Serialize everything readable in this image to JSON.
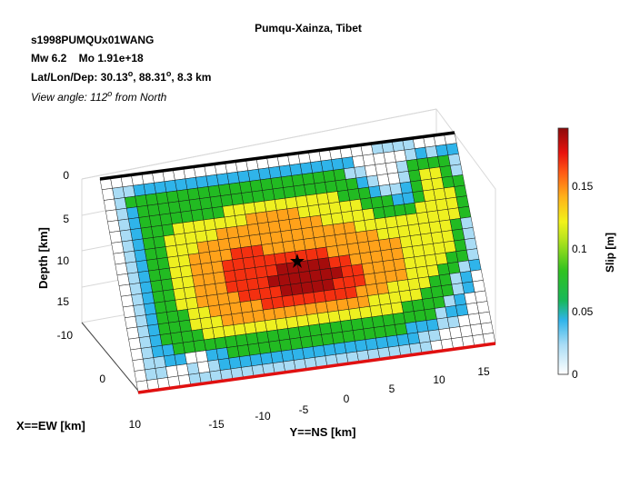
{
  "header": {
    "event_id": "s1998PUMQUx01WANG",
    "magnitude_line": "Mw 6.2    Mo 1.91e+18",
    "location_prefix": "Lat/Lon/Dep: 30.13",
    "location_mid": ", 88.31",
    "location_suffix": ", 8.3 km",
    "deg": "o",
    "view_prefix": "View angle: 112",
    "view_suffix": " from North"
  },
  "chart_data": {
    "type": "heatmap",
    "title": "Pumqu-Xainza, Tibet",
    "xlabel": "Y==NS [km]",
    "ylabel": "X==EW [km]",
    "zlabel": "Depth [km]",
    "colorbar_label": "Slip [m]",
    "colorscale": "jet-like (white to dark red)",
    "y_ticks": [
      "-15",
      "-10",
      "-5",
      "0",
      "5",
      "10",
      "15"
    ],
    "x_ticks": [
      "-10",
      "0",
      "10"
    ],
    "depth_ticks": [
      "0",
      "5",
      "10",
      "15"
    ],
    "colorbar_ticks": [
      "0",
      "0.05",
      "0.1",
      "0.15"
    ],
    "slip_range_m": [
      0,
      0.195
    ],
    "grid_cols": 34,
    "grid_rows": 20,
    "hypocenter_depth_km": 8.3,
    "peak_slip_m": 0.19,
    "slip_rows": [
      "..........................cccc..",
      ".ccbbbbbbbbbbbbbbbbbbbbb.....cbcbb.",
      ".cgggggggggggggggggggggcc...cggggc.",
      ".cbgggggggggggggggggggggbc..cgyygc.",
      ".cbggggggggyyyyyyyyyyygggbccbgyyggc",
      ".cbgggyyyyyyyoooooyyyyyygggbbgyyygc",
      ".cbggyyyyyooooooooooyyyyyggggyyyygc",
      ".cbggyyyoooooooooooooooyyyyyyyyyygc",
      ".cbggyyoooorrroooooooooooyyyyyyygcb",
      ".cbggyyooorrrrrrrrrroooooooyyyyygcb",
      ".cbggyyooorrrrrRRRRRrroooooyyyyygcb",
      ".cbggyyooorrrrRRRRRRRrrooooyyyyggcb",
      ".cbggyyoooorrrrRRRRRrrrooooyyyggcb.",
      ".cbgggyyooooorrrrrrrrroooyyyyggcb..",
      ".cbgggyyyooooooooooooooyyyyygggcb..",
      ".cbggggyyyyyyyyyyyyyyyyyyyggggcb...",
      ".cbbgggggggggggggggggggggggggcbb...",
      ".ccbb..bbgggggggggggggggggbbbcc....",
      ".cc..c.cbbbbbbbbbbbbbbbbbbbcc.....",
      ".....ccccccccccccccccccccccc......"
    ]
  }
}
